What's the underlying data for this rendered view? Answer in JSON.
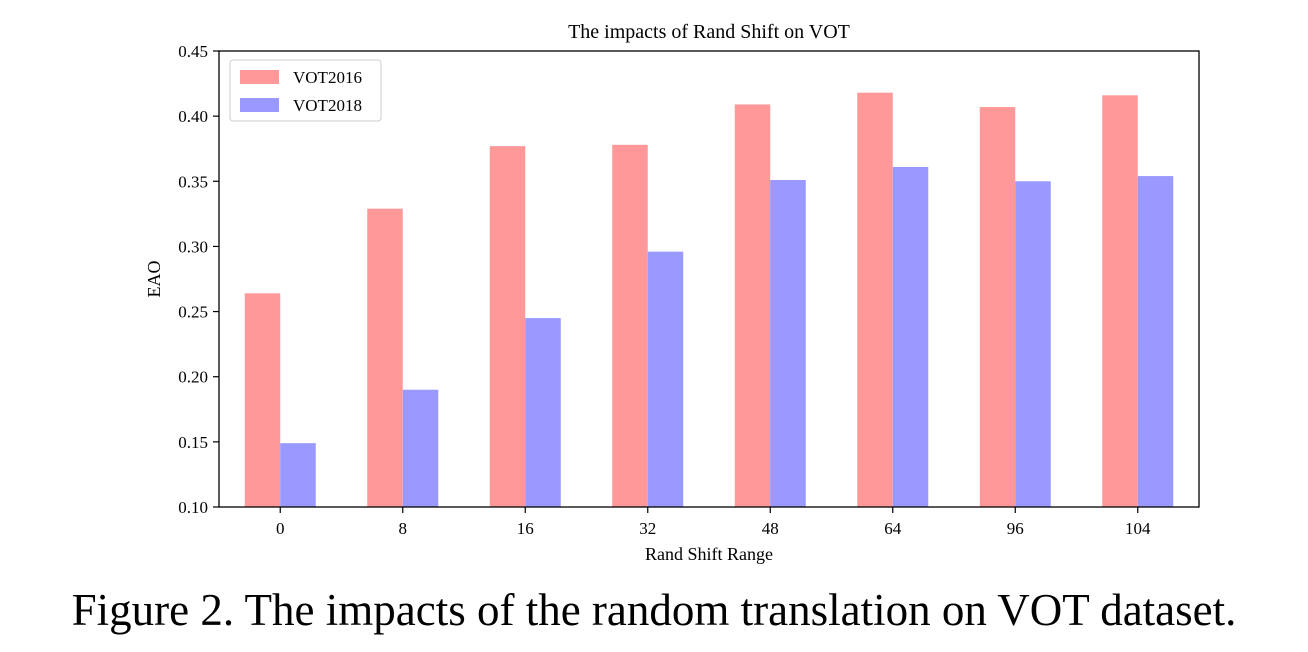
{
  "chart_data": {
    "type": "bar",
    "title": "The impacts of Rand Shift on VOT",
    "xlabel": "Rand Shift Range",
    "ylabel": "EAO",
    "categories": [
      "0",
      "8",
      "16",
      "32",
      "48",
      "64",
      "96",
      "104"
    ],
    "series": [
      {
        "name": "VOT2016",
        "color": "#ff9999",
        "values": [
          0.264,
          0.329,
          0.377,
          0.378,
          0.409,
          0.418,
          0.407,
          0.416
        ]
      },
      {
        "name": "VOT2018",
        "color": "#9999ff",
        "values": [
          0.149,
          0.19,
          0.245,
          0.296,
          0.351,
          0.361,
          0.35,
          0.354
        ]
      }
    ],
    "ylim": [
      0.1,
      0.45
    ],
    "yticks": [
      "0.10",
      "0.15",
      "0.20",
      "0.25",
      "0.30",
      "0.35",
      "0.40",
      "0.45"
    ],
    "grid": false,
    "legend_position": "top-left"
  },
  "caption": "Figure 2. The impacts of the random translation on VOT dataset."
}
